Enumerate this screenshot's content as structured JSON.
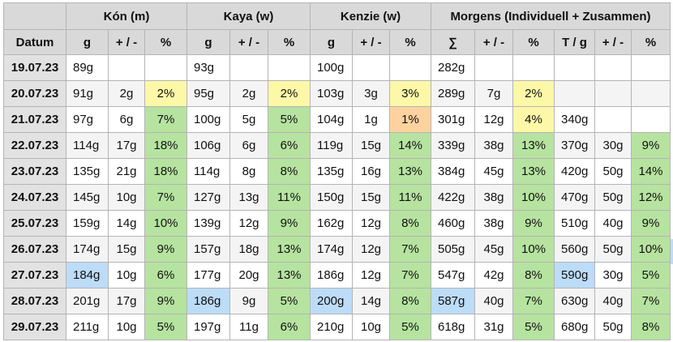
{
  "groups": [
    "",
    "Kón (m)",
    "Kaya (w)",
    "Kenzie (w)",
    "Morgens (Individuell + Zusammen)"
  ],
  "columns": [
    "Datum",
    "g",
    "+ / -",
    "%",
    "g",
    "+ / -",
    "%",
    "g",
    "+ / -",
    "%",
    "∑",
    "+ / -",
    "%",
    "T / g",
    "+ / -",
    "%"
  ],
  "highlight_colors": {
    "y": "#fcf8a8",
    "g": "#b6e3a0",
    "o": "#fcd39f",
    "b": "#bcdcf8"
  },
  "rows": [
    {
      "date": "19.07.23",
      "cells": [
        "89g",
        "",
        "",
        "93g",
        "",
        "",
        "100g",
        "",
        "",
        "282g",
        "",
        "",
        "",
        "",
        ""
      ],
      "hl": [
        "",
        "",
        "",
        "",
        "",
        "",
        "",
        "",
        "",
        "",
        "",
        "",
        "",
        "",
        ""
      ]
    },
    {
      "date": "20.07.23",
      "cells": [
        "91g",
        "2g",
        "2%",
        "95g",
        "2g",
        "2%",
        "103g",
        "3g",
        "3%",
        "289g",
        "7g",
        "2%",
        "",
        "",
        ""
      ],
      "hl": [
        "",
        "",
        "y",
        "",
        "",
        "y",
        "",
        "",
        "y",
        "",
        "",
        "y",
        "",
        "",
        ""
      ]
    },
    {
      "date": "21.07.23",
      "cells": [
        "97g",
        "6g",
        "7%",
        "100g",
        "5g",
        "5%",
        "104g",
        "1g",
        "1%",
        "301g",
        "12g",
        "4%",
        "340g",
        "",
        ""
      ],
      "hl": [
        "",
        "",
        "g",
        "",
        "",
        "g",
        "",
        "",
        "o",
        "",
        "",
        "y",
        "",
        "",
        ""
      ]
    },
    {
      "date": "22.07.23",
      "cells": [
        "114g",
        "17g",
        "18%",
        "106g",
        "6g",
        "6%",
        "119g",
        "15g",
        "14%",
        "339g",
        "38g",
        "13%",
        "370g",
        "30g",
        "9%"
      ],
      "hl": [
        "",
        "",
        "g",
        "",
        "",
        "g",
        "",
        "",
        "g",
        "",
        "",
        "g",
        "",
        "",
        "g"
      ]
    },
    {
      "date": "23.07.23",
      "cells": [
        "135g",
        "21g",
        "18%",
        "114g",
        "8g",
        "8%",
        "135g",
        "16g",
        "13%",
        "384g",
        "45g",
        "13%",
        "420g",
        "50g",
        "14%"
      ],
      "hl": [
        "",
        "",
        "g",
        "",
        "",
        "g",
        "",
        "",
        "g",
        "",
        "",
        "g",
        "",
        "",
        "g"
      ]
    },
    {
      "date": "24.07.23",
      "cells": [
        "145g",
        "10g",
        "7%",
        "127g",
        "13g",
        "11%",
        "150g",
        "15g",
        "11%",
        "422g",
        "38g",
        "10%",
        "470g",
        "50g",
        "12%"
      ],
      "hl": [
        "",
        "",
        "g",
        "",
        "",
        "g",
        "",
        "",
        "g",
        "",
        "",
        "g",
        "",
        "",
        "g"
      ]
    },
    {
      "date": "25.07.23",
      "cells": [
        "159g",
        "14g",
        "10%",
        "139g",
        "12g",
        "9%",
        "162g",
        "12g",
        "8%",
        "460g",
        "38g",
        "9%",
        "510g",
        "40g",
        "9%"
      ],
      "hl": [
        "",
        "",
        "g",
        "",
        "",
        "g",
        "",
        "",
        "g",
        "",
        "",
        "g",
        "",
        "",
        "g"
      ]
    },
    {
      "date": "26.07.23",
      "cells": [
        "174g",
        "15g",
        "9%",
        "157g",
        "18g",
        "13%",
        "174g",
        "12g",
        "7%",
        "505g",
        "45g",
        "10%",
        "560g",
        "50g",
        "10%"
      ],
      "hl": [
        "",
        "",
        "g",
        "",
        "",
        "g",
        "",
        "",
        "g",
        "",
        "",
        "g",
        "",
        "",
        "g"
      ]
    },
    {
      "date": "27.07.23",
      "cells": [
        "184g",
        "10g",
        "6%",
        "177g",
        "20g",
        "13%",
        "186g",
        "12g",
        "7%",
        "547g",
        "42g",
        "8%",
        "590g",
        "30g",
        "5%"
      ],
      "hl": [
        "b",
        "",
        "g",
        "",
        "",
        "g",
        "",
        "",
        "g",
        "",
        "",
        "g",
        "b",
        "",
        "g"
      ]
    },
    {
      "date": "28.07.23",
      "cells": [
        "201g",
        "17g",
        "9%",
        "186g",
        "9g",
        "5%",
        "200g",
        "14g",
        "8%",
        "587g",
        "40g",
        "7%",
        "630g",
        "40g",
        "7%"
      ],
      "hl": [
        "",
        "",
        "g",
        "b",
        "",
        "g",
        "b",
        "",
        "g",
        "b",
        "",
        "g",
        "",
        "",
        "g"
      ]
    },
    {
      "date": "29.07.23",
      "cells": [
        "211g",
        "10g",
        "5%",
        "197g",
        "11g",
        "6%",
        "210g",
        "10g",
        "5%",
        "618g",
        "31g",
        "5%",
        "680g",
        "50g",
        "8%"
      ],
      "hl": [
        "",
        "",
        "g",
        "",
        "",
        "g",
        "",
        "",
        "g",
        "",
        "",
        "g",
        "",
        "",
        "g"
      ]
    }
  ]
}
